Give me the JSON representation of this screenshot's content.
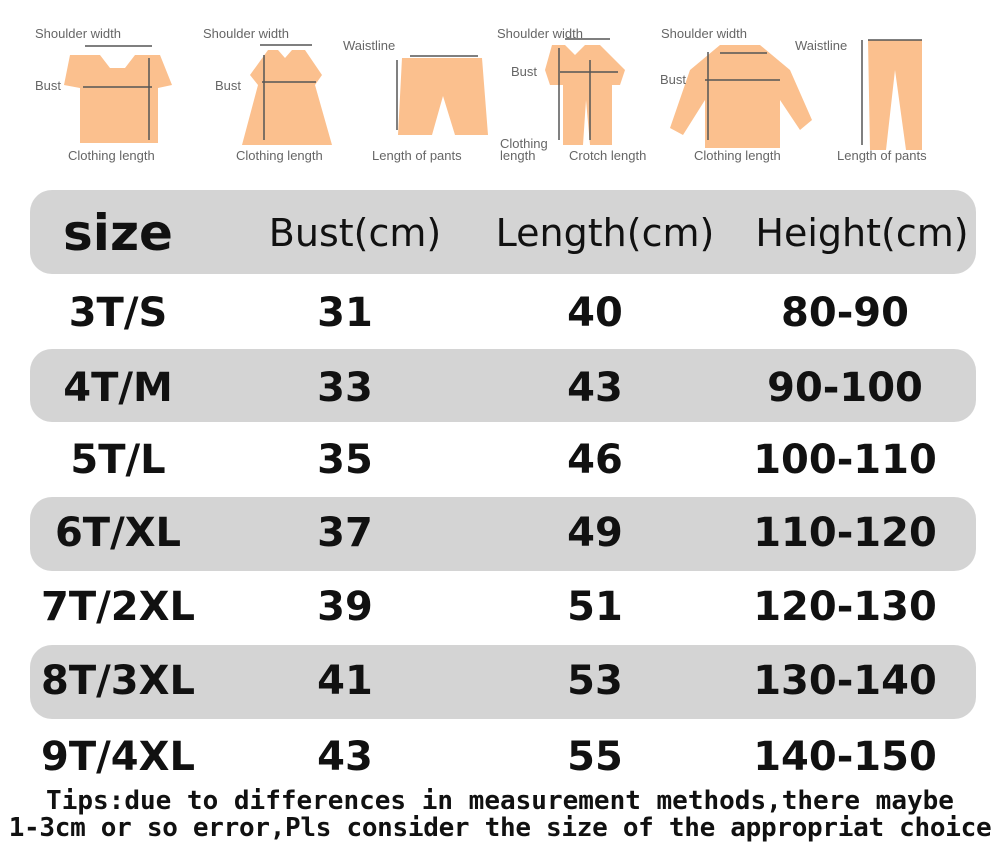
{
  "illustrations": [
    {
      "garment": "t-shirt",
      "labels": [
        "Shoulder width",
        "Bust",
        "Clothing length"
      ]
    },
    {
      "garment": "dress",
      "labels": [
        "Shoulder width",
        "Bust",
        "Clothing length"
      ]
    },
    {
      "garment": "shorts",
      "labels": [
        "Waistline",
        "Length of pants"
      ]
    },
    {
      "garment": "romper",
      "labels": [
        "Shoulder width",
        "Bust",
        "Clothing length",
        "Crotch length"
      ]
    },
    {
      "garment": "jacket",
      "labels": [
        "Shoulder width",
        "Bust",
        "Clothing length"
      ]
    },
    {
      "garment": "pants",
      "labels": [
        "Waistline",
        "Length of pants"
      ]
    }
  ],
  "colors": {
    "garment": "#fbc08e",
    "band": "#d4d4d4",
    "measure_line": "#555555"
  },
  "table": {
    "headers": [
      "size",
      "Bust(cm)",
      "Length(cm)",
      "Height(cm)"
    ],
    "rows": [
      [
        "3T/S",
        "31",
        "40",
        "80-90"
      ],
      [
        "4T/M",
        "33",
        "43",
        "90-100"
      ],
      [
        "5T/L",
        "35",
        "46",
        "100-110"
      ],
      [
        "6T/XL",
        "37",
        "49",
        "110-120"
      ],
      [
        "7T/2XL",
        "39",
        "51",
        "120-130"
      ],
      [
        "8T/3XL",
        "41",
        "53",
        "130-140"
      ],
      [
        "9T/4XL",
        "43",
        "55",
        "140-150"
      ]
    ]
  },
  "tips": [
    "Tips:due to differences in measurement methods,there maybe",
    "1-3cm or so error,Pls consider the size of the appropriat choice"
  ]
}
